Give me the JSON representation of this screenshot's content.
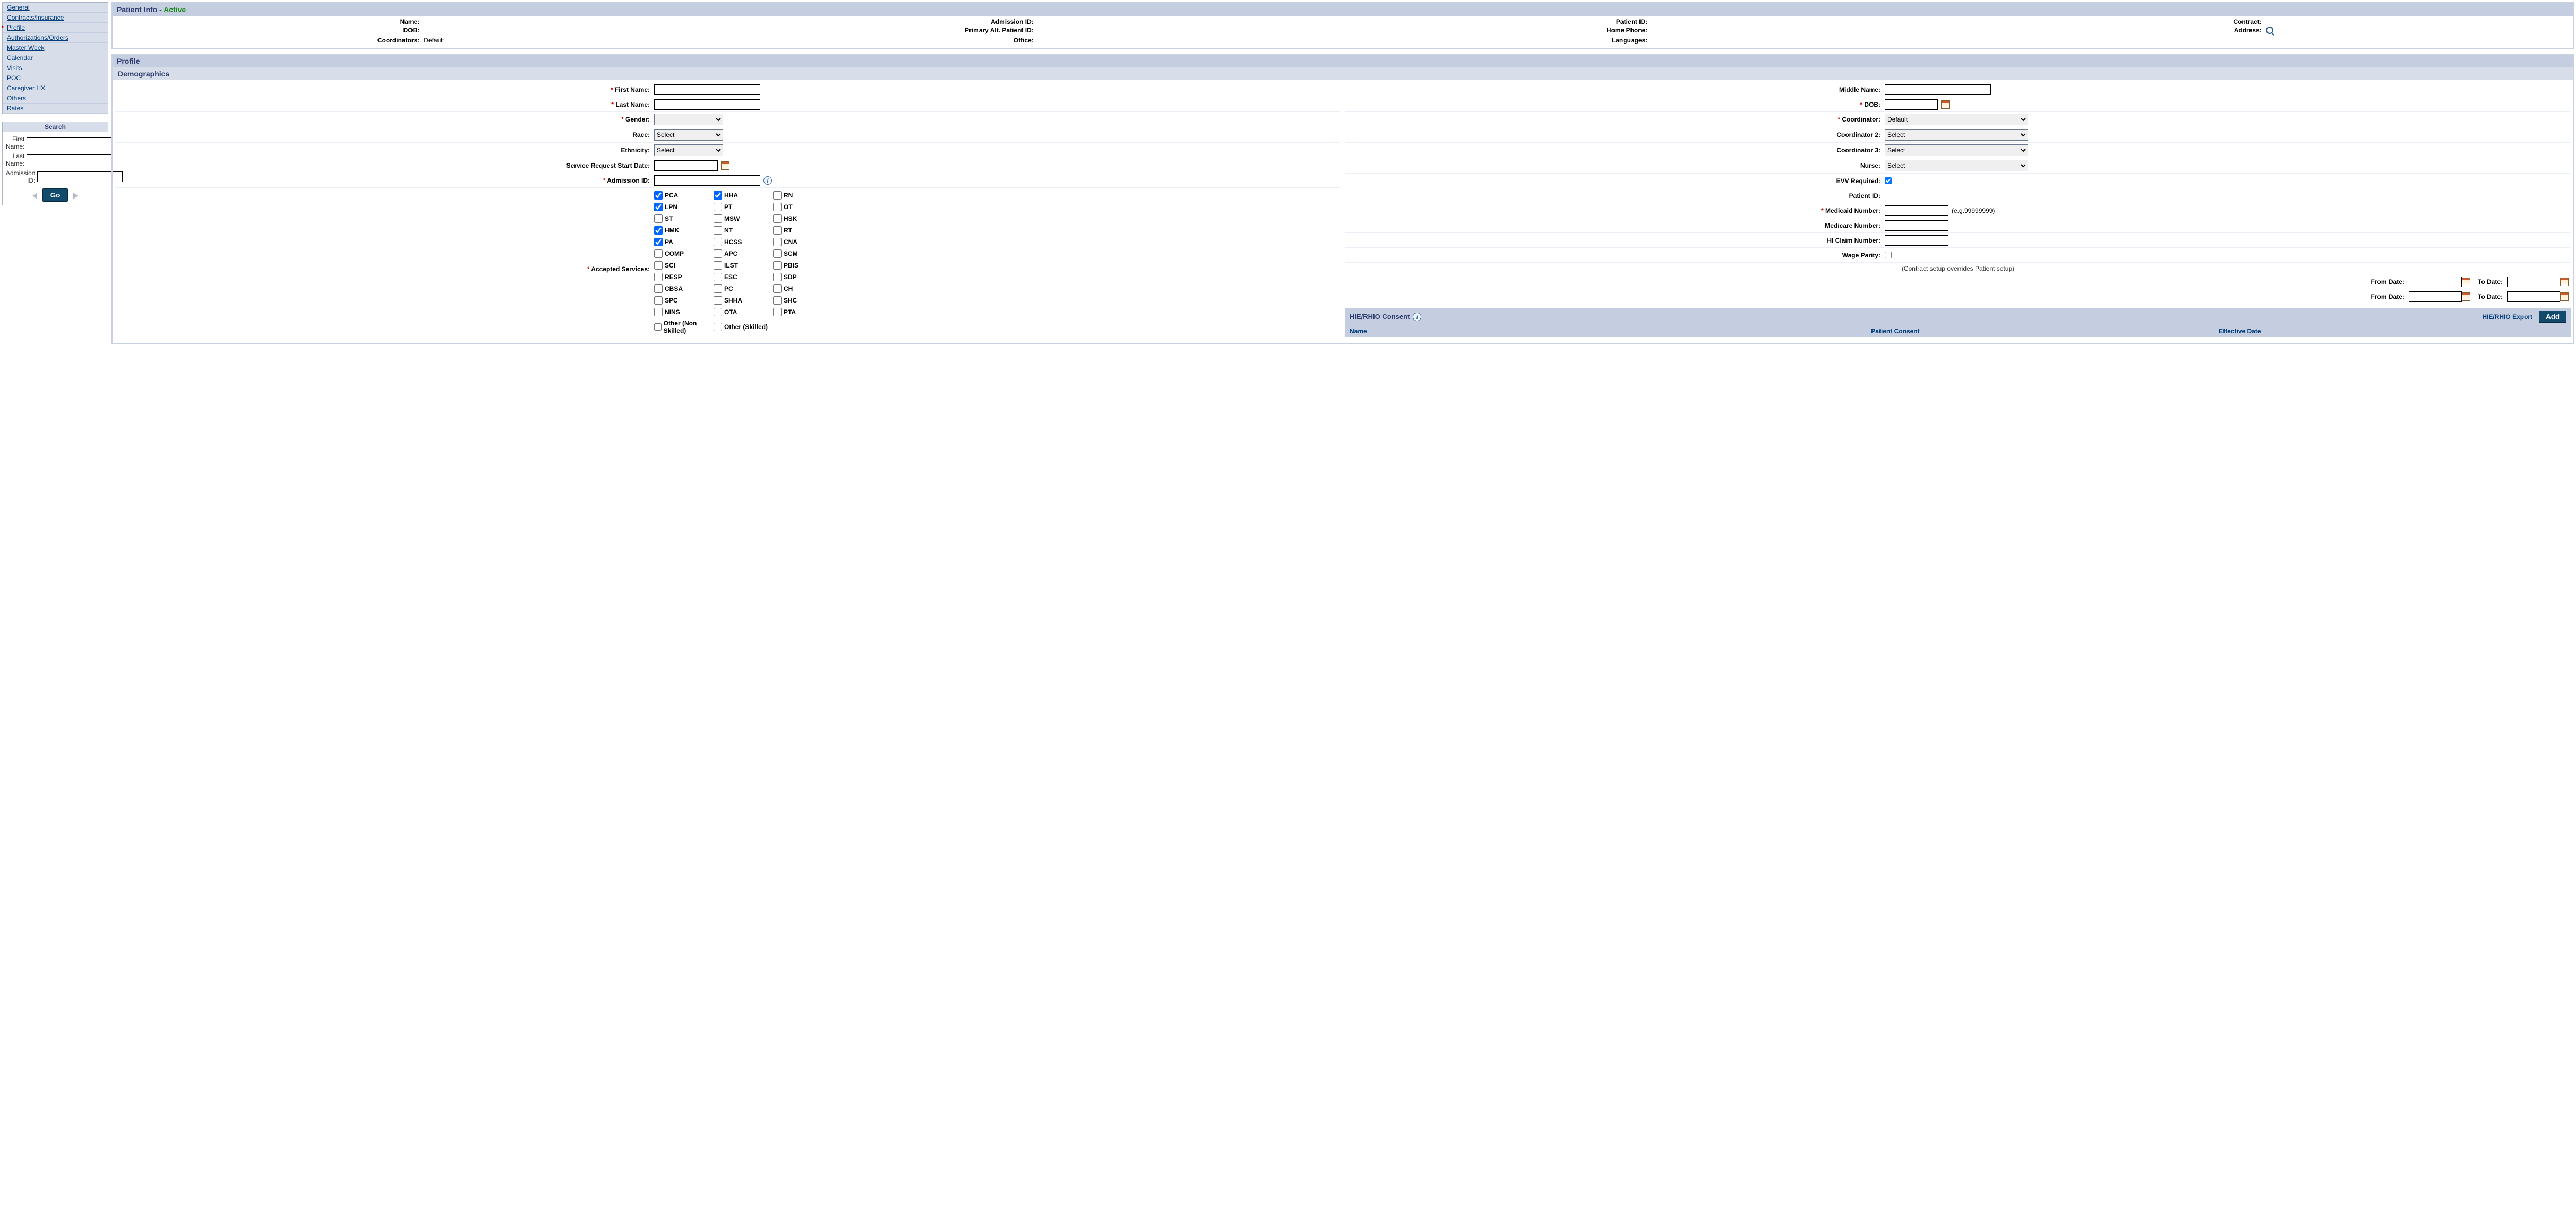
{
  "nav": {
    "items": [
      {
        "label": "General",
        "active": false
      },
      {
        "label": "Contracts/Insurance",
        "active": false
      },
      {
        "label": "Profile",
        "active": true
      },
      {
        "label": "Authorizations/Orders",
        "active": false
      },
      {
        "label": "Master Week",
        "active": false
      },
      {
        "label": "Calendar",
        "active": false
      },
      {
        "label": "Visits",
        "active": false
      },
      {
        "label": "POC",
        "active": false
      },
      {
        "label": "Caregiver HX",
        "active": false
      },
      {
        "label": "Others",
        "active": false
      },
      {
        "label": "Rates",
        "active": false
      }
    ]
  },
  "search": {
    "title": "Search",
    "first_name_label": "First Name:",
    "last_name_label": "Last Name:",
    "admission_label": "Admission ID:",
    "go": "Go"
  },
  "patient_info": {
    "title": "Patient Info - ",
    "status": "Active",
    "labels": {
      "name": "Name:",
      "admission": "Admission ID:",
      "patient_id": "Patient ID:",
      "contract": "Contract:",
      "dob": "DOB:",
      "primary_alt": "Primary Alt. Patient ID:",
      "home_phone": "Home Phone:",
      "address": "Address:",
      "coordinators": "Coordinators:",
      "office": "Office:",
      "languages": "Languages:"
    },
    "values": {
      "coordinators": "Default"
    }
  },
  "profile": {
    "title": "Profile",
    "demo_title": "Demographics",
    "labels": {
      "first_name": "First Name:",
      "middle_name": "Middle Name:",
      "last_name": "Last Name:",
      "dob": "DOB:",
      "gender": "Gender:",
      "coordinator": "Coordinator:",
      "race": "Race:",
      "coord2": "Coordinator 2:",
      "ethnicity": "Ethnicity:",
      "coord3": "Coordinator 3:",
      "sr_start": "Service Request Start Date:",
      "nurse": "Nurse:",
      "admission_id": "Admission ID:",
      "evv": "EVV Required:",
      "patient_id": "Patient ID:",
      "medicaid": "Medicaid Number:",
      "medicaid_hint": "(e.g.99999999)",
      "medicare": "Medicare Number:",
      "hi_claim": "HI Claim Number:",
      "wage": "Wage Parity:",
      "wage_note": "(Contract setup overrides Patient setup)",
      "from_date": "From Date:",
      "to_date": "To Date:",
      "accepted": "Accepted Services:"
    },
    "selects": {
      "select": "Select",
      "default": "Default"
    },
    "evv_checked": true,
    "services": [
      {
        "label": "PCA",
        "checked": true
      },
      {
        "label": "HHA",
        "checked": true
      },
      {
        "label": "RN",
        "checked": false
      },
      {
        "label": "LPN",
        "checked": true
      },
      {
        "label": "PT",
        "checked": false
      },
      {
        "label": "OT",
        "checked": false
      },
      {
        "label": "ST",
        "checked": false
      },
      {
        "label": "MSW",
        "checked": false
      },
      {
        "label": "HSK",
        "checked": false
      },
      {
        "label": "HMK",
        "checked": true
      },
      {
        "label": "NT",
        "checked": false
      },
      {
        "label": "RT",
        "checked": false
      },
      {
        "label": "PA",
        "checked": true
      },
      {
        "label": "HCSS",
        "checked": false
      },
      {
        "label": "CNA",
        "checked": false
      },
      {
        "label": "COMP",
        "checked": false
      },
      {
        "label": "APC",
        "checked": false
      },
      {
        "label": "SCM",
        "checked": false
      },
      {
        "label": "SCI",
        "checked": false
      },
      {
        "label": "ILST",
        "checked": false
      },
      {
        "label": "PBIS",
        "checked": false
      },
      {
        "label": "RESP",
        "checked": false
      },
      {
        "label": "ESC",
        "checked": false
      },
      {
        "label": "SDP",
        "checked": false
      },
      {
        "label": "CBSA",
        "checked": false
      },
      {
        "label": "PC",
        "checked": false
      },
      {
        "label": "CH",
        "checked": false
      },
      {
        "label": "SPC",
        "checked": false
      },
      {
        "label": "SHHA",
        "checked": false
      },
      {
        "label": "SHC",
        "checked": false
      },
      {
        "label": "NINS",
        "checked": false
      },
      {
        "label": "OTA",
        "checked": false
      },
      {
        "label": "PTA",
        "checked": false
      },
      {
        "label": "Other (Non Skilled)",
        "checked": false
      },
      {
        "label": "Other (Skilled)",
        "checked": false
      }
    ]
  },
  "consent": {
    "title": "HIE/RHIO Consent",
    "export": "HIE/RHIO Export",
    "add": "Add",
    "cols": {
      "name": "Name",
      "pc": "Patient Consent",
      "eff": "Effective Date"
    }
  }
}
